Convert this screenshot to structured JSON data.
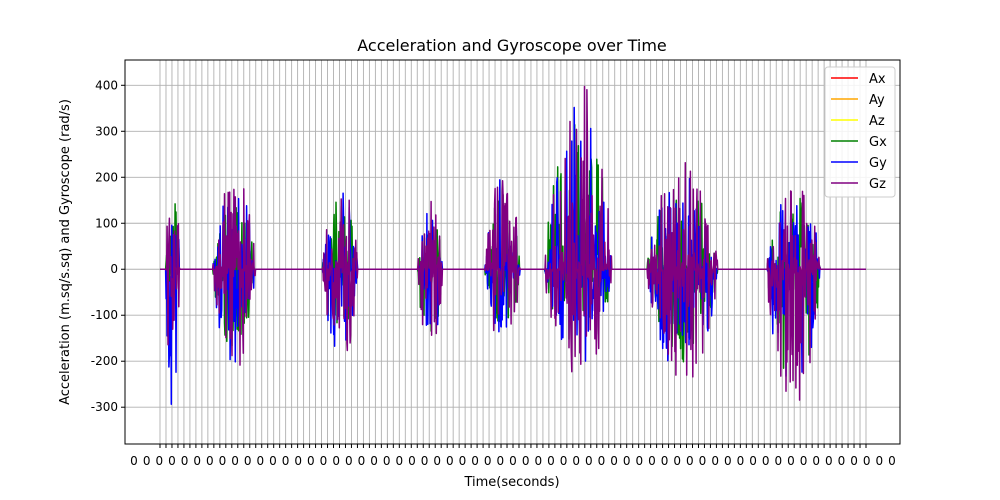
{
  "chart_data": {
    "type": "line",
    "title": "Acceleration and Gyroscope over Time",
    "xlabel": "Time(seconds)",
    "ylabel": "Acceleration (m.sq/s.sq) and Gyroscope (rad/s)",
    "ylim": [
      -380,
      455
    ],
    "yticks": [
      -300,
      -200,
      -100,
      0,
      100,
      200,
      300,
      400
    ],
    "grid": true,
    "legend_position": "top-right",
    "colors": {
      "Ax": "#ff0000",
      "Ay": "#ffa500",
      "Az": "#ffff00",
      "Gx": "#008000",
      "Gy": "#0000ff",
      "Gz": "#800080"
    },
    "series": [
      {
        "name": "Ax",
        "pattern": "flat"
      },
      {
        "name": "Ay",
        "pattern": "flat"
      },
      {
        "name": "Az",
        "pattern": "flat"
      },
      {
        "name": "Gx",
        "pattern": "bursts"
      },
      {
        "name": "Gy",
        "pattern": "bursts"
      },
      {
        "name": "Gz",
        "pattern": "bursts"
      }
    ],
    "bursts": [
      {
        "id": "b1",
        "t0": 0.008,
        "t1": 0.028,
        "peak_pos": 220,
        "peak_neg": -340
      },
      {
        "id": "b2",
        "t0": 0.075,
        "t1": 0.135,
        "peak_pos": 210,
        "peak_neg": -230
      },
      {
        "id": "b3",
        "t0": 0.23,
        "t1": 0.28,
        "peak_pos": 190,
        "peak_neg": -215
      },
      {
        "id": "b4",
        "t0": 0.365,
        "t1": 0.4,
        "peak_pos": 175,
        "peak_neg": -215
      },
      {
        "id": "b5",
        "t0": 0.46,
        "t1": 0.51,
        "peak_pos": 220,
        "peak_neg": -165
      },
      {
        "id": "b6",
        "t0": 0.545,
        "t1": 0.64,
        "peak_pos": 420,
        "peak_neg": -245
      },
      {
        "id": "b7",
        "t0": 0.69,
        "t1": 0.79,
        "peak_pos": 235,
        "peak_neg": -255
      },
      {
        "id": "b8",
        "t0": 0.86,
        "t1": 0.935,
        "peak_pos": 210,
        "peak_neg": -340
      }
    ]
  }
}
